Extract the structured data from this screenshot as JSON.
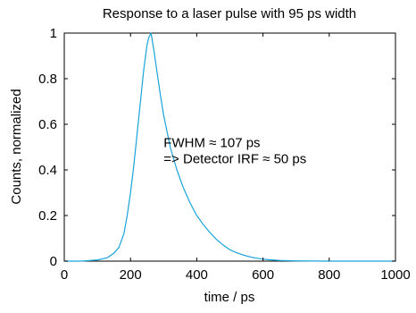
{
  "chart_data": {
    "type": "line",
    "title": "Response to a laser pulse with 95 ps width",
    "xlabel": "time / ps",
    "ylabel": "Counts, normalized",
    "xlim": [
      0,
      1000
    ],
    "ylim": [
      0,
      1
    ],
    "xticks": [
      0,
      200,
      400,
      600,
      800,
      1000
    ],
    "yticks": [
      0,
      0.2,
      0.4,
      0.6,
      0.8,
      1
    ],
    "grid": false,
    "legend": "none",
    "color": "#1aa3d9",
    "annotations": [
      {
        "text": "FWHM ≈ 107 ps",
        "x": 300,
        "y": 0.5
      },
      {
        "text": "=> Detector IRF ≈ 50 ps",
        "x": 300,
        "y": 0.43
      }
    ],
    "series": [
      {
        "x": [
          0,
          50,
          100,
          130,
          150,
          165,
          180,
          190,
          200,
          210,
          220,
          230,
          240,
          250,
          255,
          262,
          270,
          280,
          290,
          300,
          320,
          340,
          360,
          380,
          400,
          420,
          440,
          460,
          480,
          500,
          520,
          540,
          560,
          580,
          600,
          620,
          650,
          700,
          800,
          900,
          1000
        ],
        "y": [
          0,
          0,
          0.005,
          0.015,
          0.035,
          0.06,
          0.12,
          0.2,
          0.3,
          0.42,
          0.56,
          0.7,
          0.84,
          0.95,
          0.98,
          1.0,
          0.93,
          0.83,
          0.73,
          0.64,
          0.5,
          0.4,
          0.32,
          0.255,
          0.2,
          0.16,
          0.125,
          0.095,
          0.07,
          0.05,
          0.037,
          0.027,
          0.019,
          0.013,
          0.009,
          0.006,
          0.003,
          0.001,
          0,
          0,
          0
        ]
      }
    ]
  }
}
